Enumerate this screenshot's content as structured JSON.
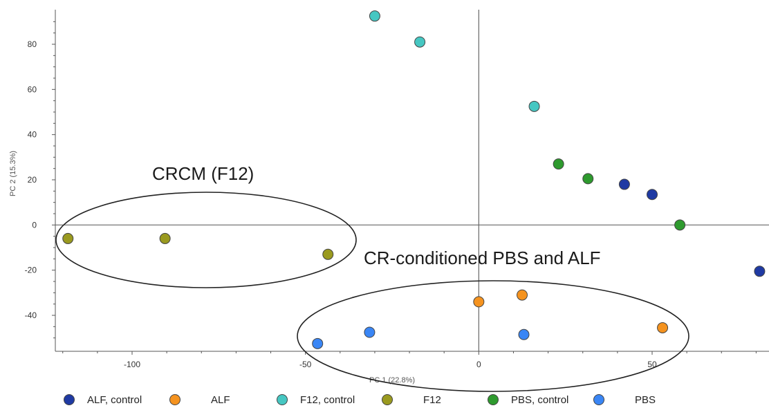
{
  "chart_data": {
    "type": "scatter",
    "title": "",
    "xlabel": "PC 1 (22.8%)",
    "ylabel": "PC 2 (15.3%)",
    "xlim": [
      -122,
      83
    ],
    "ylim": [
      -55,
      95
    ],
    "xticks": [
      -100,
      -50,
      0,
      50
    ],
    "yticks": [
      80,
      60,
      40,
      20,
      0,
      -20,
      -40
    ],
    "grid": false,
    "legend_position": "bottom",
    "series": [
      {
        "name": "ALF, control",
        "color": "#1f3aa3",
        "points": [
          [
            42,
            18
          ],
          [
            50,
            13.5
          ],
          [
            81,
            -20.5
          ]
        ]
      },
      {
        "name": "ALF",
        "color": "#f5931f",
        "points": [
          [
            0,
            -34
          ],
          [
            12.5,
            -31
          ],
          [
            53,
            -45.5
          ]
        ]
      },
      {
        "name": "F12, control",
        "color": "#46c7c2",
        "points": [
          [
            -30,
            92.5
          ],
          [
            -17,
            81
          ],
          [
            16,
            52.5
          ]
        ]
      },
      {
        "name": "F12",
        "color": "#9a9a1f",
        "points": [
          [
            -118.5,
            -6
          ],
          [
            -90.5,
            -6
          ],
          [
            -43.5,
            -13
          ]
        ]
      },
      {
        "name": "PBS, control",
        "color": "#2e9a2e",
        "points": [
          [
            23,
            27
          ],
          [
            31.5,
            20.5
          ],
          [
            58,
            0
          ]
        ]
      },
      {
        "name": "PBS",
        "color": "#3a86f5",
        "points": [
          [
            -46.5,
            -52.5
          ],
          [
            -31.5,
            -47.5
          ],
          [
            13,
            -48.5
          ]
        ]
      }
    ],
    "annotations": [
      {
        "text": "CRCM (F12)"
      },
      {
        "text": "CR-conditioned PBS and ALF"
      }
    ]
  }
}
